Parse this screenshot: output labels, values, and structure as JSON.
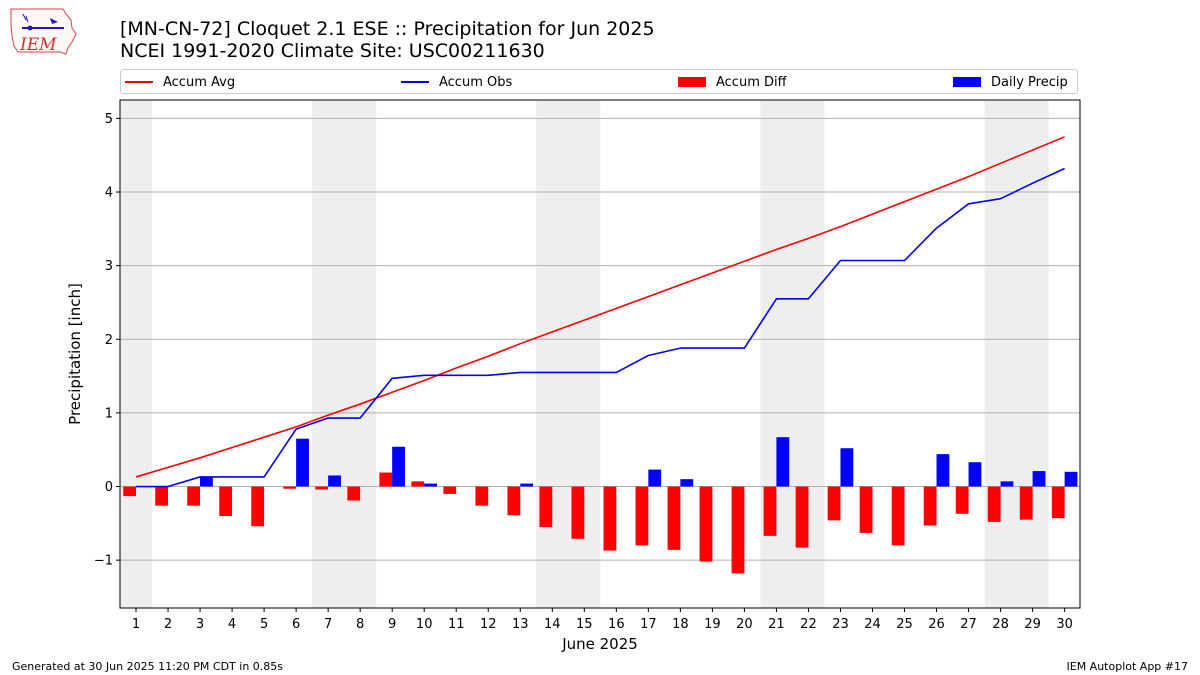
{
  "titles": {
    "line1": "[MN-CN-72] Cloquet 2.1 ESE :: Precipitation for Jun 2025",
    "line2": "NCEI 1991-2020 Climate Site: USC00211630"
  },
  "logo": {
    "text": "IEM",
    "icon": "iowa-state-logo"
  },
  "legend": [
    {
      "label": "Accum Avg",
      "kind": "line",
      "color": "#ff0000"
    },
    {
      "label": "Accum Obs",
      "kind": "line",
      "color": "#0000ff"
    },
    {
      "label": "Accum Diff",
      "kind": "bar",
      "color": "#ff0000"
    },
    {
      "label": "Daily Precip",
      "kind": "bar",
      "color": "#0000ff"
    }
  ],
  "footer": {
    "left": "Generated at 30 Jun 2025 11:20 PM CDT in 0.85s",
    "right": "IEM Autoplot App #17"
  },
  "chart_data": {
    "type": "bar",
    "xlabel": "June 2025",
    "ylabel": "Precipitation [inch]",
    "ylim": [
      -1.65,
      5.25
    ],
    "yticks": [
      -1,
      0,
      1,
      2,
      3,
      4,
      5
    ],
    "ytick_labels": [
      "−1",
      "0",
      "1",
      "2",
      "3",
      "4",
      "5"
    ],
    "grid": "horizontal",
    "legend_position": "top",
    "x": [
      1,
      2,
      3,
      4,
      5,
      6,
      7,
      8,
      9,
      10,
      11,
      12,
      13,
      14,
      15,
      16,
      17,
      18,
      19,
      20,
      21,
      22,
      23,
      24,
      25,
      26,
      27,
      28,
      29,
      30
    ],
    "weekend_shading": [
      [
        1,
        1
      ],
      [
        7,
        8
      ],
      [
        14,
        15
      ],
      [
        21,
        22
      ],
      [
        28,
        29
      ]
    ],
    "series": [
      {
        "name": "Accum Avg",
        "kind": "line",
        "color": "#ff0000",
        "values": [
          0.13,
          0.26,
          0.39,
          0.53,
          0.67,
          0.81,
          0.97,
          1.12,
          1.28,
          1.44,
          1.61,
          1.77,
          1.94,
          2.1,
          2.26,
          2.42,
          2.58,
          2.74,
          2.9,
          3.06,
          3.22,
          3.37,
          3.53,
          3.7,
          3.87,
          4.04,
          4.21,
          4.39,
          4.57,
          4.75
        ]
      },
      {
        "name": "Accum Obs",
        "kind": "line",
        "color": "#0000ff",
        "values": [
          0.0,
          0.0,
          0.13,
          0.13,
          0.13,
          0.78,
          0.93,
          0.93,
          1.47,
          1.51,
          1.51,
          1.51,
          1.55,
          1.55,
          1.55,
          1.55,
          1.78,
          1.88,
          1.88,
          1.88,
          2.55,
          2.55,
          3.07,
          3.07,
          3.07,
          3.51,
          3.84,
          3.91,
          4.12,
          4.32
        ]
      },
      {
        "name": "Accum Diff",
        "kind": "bar",
        "color": "#ff0000",
        "values": [
          -0.13,
          -0.26,
          -0.26,
          -0.4,
          -0.54,
          -0.03,
          -0.04,
          -0.19,
          0.19,
          0.07,
          -0.1,
          -0.26,
          -0.39,
          -0.55,
          -0.71,
          -0.87,
          -0.8,
          -0.86,
          -1.02,
          -1.18,
          -0.67,
          -0.83,
          -0.46,
          -0.63,
          -0.8,
          -0.53,
          -0.37,
          -0.48,
          -0.45,
          -0.43
        ]
      },
      {
        "name": "Daily Precip",
        "kind": "bar",
        "color": "#0000ff",
        "values": [
          0.0,
          0.0,
          0.13,
          0.0,
          0.0,
          0.65,
          0.15,
          0.0,
          0.54,
          0.04,
          0.0,
          0.0,
          0.04,
          0.0,
          0.0,
          0.0,
          0.23,
          0.1,
          0.0,
          0.0,
          0.67,
          0.0,
          0.52,
          0.0,
          0.0,
          0.44,
          0.33,
          0.07,
          0.21,
          0.2
        ]
      }
    ]
  }
}
